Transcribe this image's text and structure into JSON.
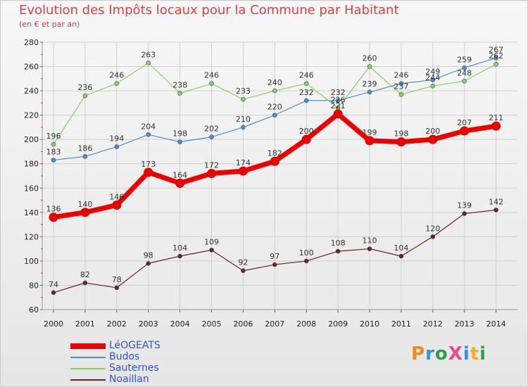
{
  "chart_data": {
    "type": "line",
    "title": "Evolution des Impôts locaux pour la Commune par Habitant",
    "subtitle": "(en € et par an)",
    "x": [
      "2000",
      "2001",
      "2002",
      "2003",
      "2004",
      "2005",
      "2006",
      "2007",
      "2008",
      "2009",
      "2010",
      "2011",
      "2012",
      "2013",
      "2014"
    ],
    "ylim": [
      60,
      280
    ],
    "yticks": [
      60,
      80,
      100,
      120,
      140,
      160,
      180,
      200,
      220,
      240,
      260,
      280
    ],
    "grid": true,
    "legend_position": "bottom-left",
    "series": [
      {
        "name": "LéOGEATS",
        "color": "#ee0000",
        "values": [
          136,
          140,
          146,
          173,
          164,
          172,
          174,
          182,
          200,
          221,
          199,
          198,
          200,
          207,
          211
        ]
      },
      {
        "name": "Budos",
        "color": "#4f8fc8",
        "values": [
          183,
          186,
          194,
          204,
          198,
          202,
          210,
          220,
          232,
          232,
          239,
          246,
          249,
          259,
          267
        ]
      },
      {
        "name": "Sauternes",
        "color": "#88d060",
        "values": [
          196,
          236,
          246,
          263,
          238,
          246,
          233,
          240,
          246,
          226,
          260,
          237,
          244,
          248,
          262
        ]
      },
      {
        "name": "Noaillan",
        "color": "#6b2222",
        "values": [
          74,
          82,
          78,
          98,
          104,
          109,
          92,
          97,
          100,
          108,
          110,
          104,
          120,
          139,
          142
        ]
      }
    ]
  },
  "logo": {
    "text": "ProXiti",
    "colors": [
      "#f08a1c",
      "#3b8fd8",
      "#2aa24a",
      "#e84a8a",
      "#3b8fd8",
      "#f0b020",
      "#2aa24a"
    ]
  }
}
